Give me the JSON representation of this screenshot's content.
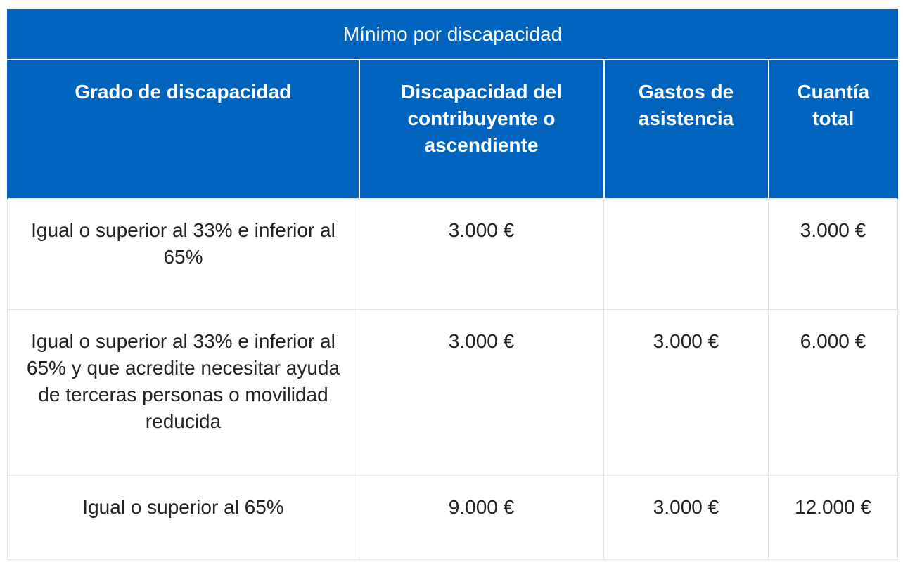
{
  "table": {
    "title": "Mínimo por discapacidad",
    "headers": [
      "Grado de discapacidad",
      "Discapacidad del contribuyente o ascendiente",
      "Gastos de asistencia",
      "Cuantía total"
    ],
    "rows": [
      {
        "grado": "Igual o superior al 33% e inferior al 65%",
        "discapacidad": "3.000 €",
        "gastos": "",
        "total": "3.000 €"
      },
      {
        "grado": "Igual o superior al 33% e inferior al 65% y que acredite necesitar ayuda de terceras personas o movilidad reducida",
        "discapacidad": "3.000 €",
        "gastos": "3.000 €",
        "total": "6.000 €"
      },
      {
        "grado": "Igual o superior al 65%",
        "discapacidad": "9.000 €",
        "gastos": "3.000 €",
        "total": "12.000 €"
      }
    ]
  },
  "colors": {
    "header_bg": "#0064be",
    "header_text": "#ffffff",
    "body_text": "#222222",
    "grid_line": "#e3e3e3"
  }
}
